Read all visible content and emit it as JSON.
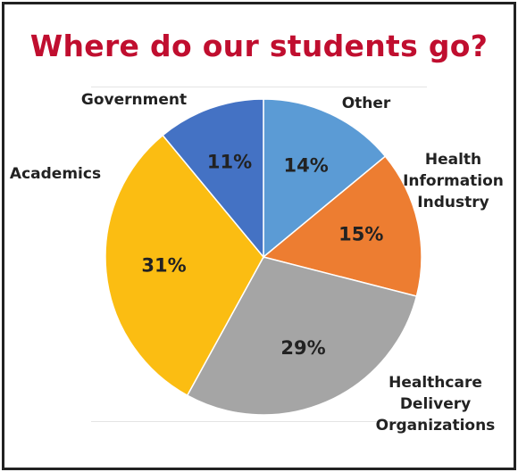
{
  "chart_data": {
    "type": "pie",
    "title": "Where do our students go?",
    "slices": [
      {
        "category": "Other",
        "value": 14,
        "label": "14%",
        "color": "#5b9bd5"
      },
      {
        "category": "Health\nInformation\nIndustry",
        "value": 15,
        "label": "15%",
        "color": "#ed7d31"
      },
      {
        "category": "Healthcare\nDelivery\nOrganizations",
        "value": 29,
        "label": "29%",
        "color": "#a5a5a5"
      },
      {
        "category": "Academics",
        "value": 31,
        "label": "31%",
        "color": "#fbbd12"
      },
      {
        "category": "Government",
        "value": 11,
        "label": "11%",
        "color": "#4472c4"
      }
    ]
  }
}
